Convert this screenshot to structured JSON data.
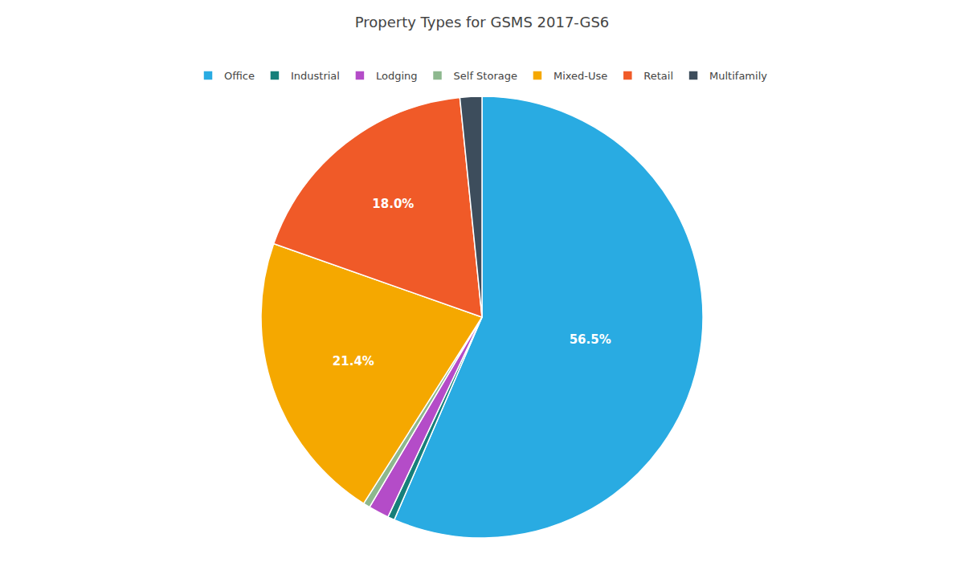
{
  "chart_data": {
    "type": "pie",
    "title": "Property Types for GSMS 2017-GS6",
    "categories": [
      "Office",
      "Industrial",
      "Lodging",
      "Self Storage",
      "Mixed-Use",
      "Retail",
      "Multifamily"
    ],
    "values": [
      56.5,
      0.5,
      1.5,
      0.5,
      21.4,
      18.0,
      1.6
    ],
    "value_labels": [
      "56.5%",
      null,
      null,
      null,
      "21.4%",
      "18.0%",
      null
    ],
    "colors": [
      "#29abe2",
      "#167f7a",
      "#b44cc8",
      "#8db88e",
      "#f5a800",
      "#f05a28",
      "#3d4d5c"
    ],
    "data_labels": true,
    "legend": "top"
  }
}
